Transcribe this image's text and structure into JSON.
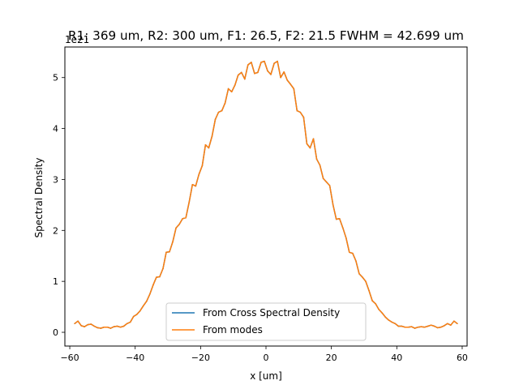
{
  "chart_data": {
    "type": "line",
    "title": "R1: 369 um, R2: 300 um, F1: 26.5, F2: 21.5  FWHM = 42.699 um",
    "xlabel": "x [um]",
    "ylabel": "Spectral Density",
    "y_scale_label": "1e21",
    "y_scale": 1e+21,
    "xlim": [
      -61.5,
      61.5
    ],
    "ylim": [
      -0.27,
      5.6
    ],
    "x_ticks": [
      -60,
      -40,
      -20,
      0,
      20,
      40,
      60
    ],
    "x_tick_labels": [
      "−60",
      "−40",
      "−20",
      "0",
      "20",
      "40",
      "60"
    ],
    "y_ticks": [
      0,
      1,
      2,
      3,
      4,
      5
    ],
    "y_tick_labels": [
      "0",
      "1",
      "2",
      "3",
      "4",
      "5"
    ],
    "grid": false,
    "legend_position": "lower center",
    "series": [
      {
        "name": "From Cross Spectral Density",
        "color": "#1f77b4",
        "x": [
          -58.5,
          -57.5,
          -56.5,
          -55.5,
          -54.5,
          -53.5,
          -52.5,
          -51.5,
          -50.5,
          -49.5,
          -48.5,
          -47.5,
          -46.5,
          -45.5,
          -44.5,
          -43.5,
          -42.5,
          -41.5,
          -40.5,
          -39.5,
          -38.5,
          -37.5,
          -36.5,
          -35.5,
          -34.5,
          -33.5,
          -32.5,
          -31.5,
          -30.5,
          -29.5,
          -28.5,
          -27.5,
          -26.5,
          -25.5,
          -24.5,
          -23.5,
          -22.5,
          -21.5,
          -20.5,
          -19.5,
          -18.5,
          -17.5,
          -16.5,
          -15.5,
          -14.5,
          -13.5,
          -12.5,
          -11.5,
          -10.5,
          -9.5,
          -8.5,
          -7.5,
          -6.5,
          -5.5,
          -4.5,
          -3.5,
          -2.5,
          -1.5,
          -0.5,
          0.5,
          1.5,
          2.5,
          3.5,
          4.5,
          5.5,
          6.5,
          7.5,
          8.5,
          9.5,
          10.5,
          11.5,
          12.5,
          13.5,
          14.5,
          15.5,
          16.5,
          17.5,
          18.5,
          19.5,
          20.5,
          21.5,
          22.5,
          23.5,
          24.5,
          25.5,
          26.5,
          27.5,
          28.5,
          29.5,
          30.5,
          31.5,
          32.5,
          33.5,
          34.5,
          35.5,
          36.5,
          37.5,
          38.5,
          39.5,
          40.5,
          41.5,
          42.5,
          43.5,
          44.5,
          45.5,
          46.5,
          47.5,
          48.5,
          49.5,
          50.5,
          51.5,
          52.5,
          53.5,
          54.5,
          55.5,
          56.5,
          57.5,
          58.5
        ],
        "y": [
          0.17,
          0.22,
          0.13,
          0.11,
          0.15,
          0.16,
          0.12,
          0.09,
          0.08,
          0.1,
          0.1,
          0.08,
          0.11,
          0.12,
          0.1,
          0.12,
          0.17,
          0.2,
          0.31,
          0.35,
          0.42,
          0.52,
          0.61,
          0.75,
          0.93,
          1.08,
          1.09,
          1.25,
          1.57,
          1.58,
          1.78,
          2.05,
          2.12,
          2.23,
          2.25,
          2.55,
          2.9,
          2.87,
          3.1,
          3.27,
          3.68,
          3.62,
          3.85,
          4.18,
          4.32,
          4.35,
          4.5,
          4.78,
          4.72,
          4.85,
          5.05,
          5.1,
          4.97,
          5.25,
          5.3,
          5.08,
          5.1,
          5.3,
          5.32,
          5.13,
          5.06,
          5.28,
          5.32,
          5.0,
          5.11,
          4.95,
          4.87,
          4.78,
          4.35,
          4.32,
          4.22,
          3.7,
          3.62,
          3.8,
          3.4,
          3.28,
          3.02,
          2.95,
          2.88,
          2.5,
          2.22,
          2.23,
          2.05,
          1.85,
          1.57,
          1.55,
          1.4,
          1.15,
          1.08,
          1.0,
          0.82,
          0.62,
          0.56,
          0.45,
          0.38,
          0.3,
          0.24,
          0.2,
          0.17,
          0.12,
          0.12,
          0.1,
          0.1,
          0.11,
          0.08,
          0.1,
          0.11,
          0.1,
          0.12,
          0.14,
          0.12,
          0.09,
          0.1,
          0.13,
          0.17,
          0.14,
          0.22,
          0.17
        ]
      },
      {
        "name": "From modes",
        "color": "#ff7f0e",
        "x": [
          -58.5,
          -57.5,
          -56.5,
          -55.5,
          -54.5,
          -53.5,
          -52.5,
          -51.5,
          -50.5,
          -49.5,
          -48.5,
          -47.5,
          -46.5,
          -45.5,
          -44.5,
          -43.5,
          -42.5,
          -41.5,
          -40.5,
          -39.5,
          -38.5,
          -37.5,
          -36.5,
          -35.5,
          -34.5,
          -33.5,
          -32.5,
          -31.5,
          -30.5,
          -29.5,
          -28.5,
          -27.5,
          -26.5,
          -25.5,
          -24.5,
          -23.5,
          -22.5,
          -21.5,
          -20.5,
          -19.5,
          -18.5,
          -17.5,
          -16.5,
          -15.5,
          -14.5,
          -13.5,
          -12.5,
          -11.5,
          -10.5,
          -9.5,
          -8.5,
          -7.5,
          -6.5,
          -5.5,
          -4.5,
          -3.5,
          -2.5,
          -1.5,
          -0.5,
          0.5,
          1.5,
          2.5,
          3.5,
          4.5,
          5.5,
          6.5,
          7.5,
          8.5,
          9.5,
          10.5,
          11.5,
          12.5,
          13.5,
          14.5,
          15.5,
          16.5,
          17.5,
          18.5,
          19.5,
          20.5,
          21.5,
          22.5,
          23.5,
          24.5,
          25.5,
          26.5,
          27.5,
          28.5,
          29.5,
          30.5,
          31.5,
          32.5,
          33.5,
          34.5,
          35.5,
          36.5,
          37.5,
          38.5,
          39.5,
          40.5,
          41.5,
          42.5,
          43.5,
          44.5,
          45.5,
          46.5,
          47.5,
          48.5,
          49.5,
          50.5,
          51.5,
          52.5,
          53.5,
          54.5,
          55.5,
          56.5,
          57.5,
          58.5
        ],
        "y": [
          0.17,
          0.22,
          0.13,
          0.11,
          0.15,
          0.16,
          0.12,
          0.09,
          0.08,
          0.1,
          0.1,
          0.08,
          0.11,
          0.12,
          0.1,
          0.12,
          0.17,
          0.2,
          0.31,
          0.35,
          0.42,
          0.52,
          0.61,
          0.75,
          0.93,
          1.08,
          1.09,
          1.25,
          1.57,
          1.58,
          1.78,
          2.05,
          2.12,
          2.23,
          2.25,
          2.55,
          2.9,
          2.87,
          3.1,
          3.27,
          3.68,
          3.62,
          3.85,
          4.18,
          4.32,
          4.35,
          4.5,
          4.78,
          4.72,
          4.85,
          5.05,
          5.1,
          4.97,
          5.25,
          5.3,
          5.08,
          5.1,
          5.3,
          5.32,
          5.13,
          5.06,
          5.28,
          5.32,
          5.0,
          5.11,
          4.95,
          4.87,
          4.78,
          4.35,
          4.32,
          4.22,
          3.7,
          3.62,
          3.8,
          3.4,
          3.28,
          3.02,
          2.95,
          2.88,
          2.5,
          2.22,
          2.23,
          2.05,
          1.85,
          1.57,
          1.55,
          1.4,
          1.15,
          1.08,
          1.0,
          0.82,
          0.62,
          0.56,
          0.45,
          0.38,
          0.3,
          0.24,
          0.2,
          0.17,
          0.12,
          0.12,
          0.1,
          0.1,
          0.11,
          0.08,
          0.1,
          0.11,
          0.1,
          0.12,
          0.14,
          0.12,
          0.09,
          0.1,
          0.13,
          0.17,
          0.14,
          0.22,
          0.17
        ]
      }
    ]
  }
}
